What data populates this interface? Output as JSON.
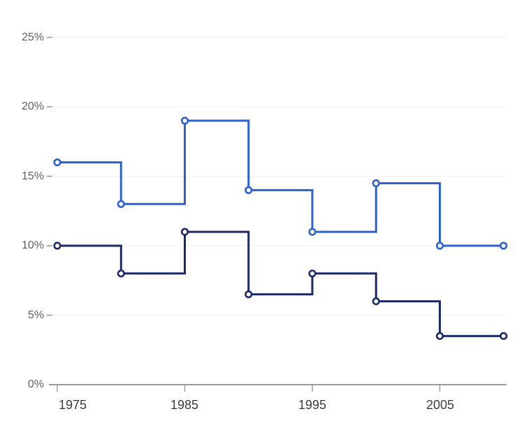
{
  "chart_data": {
    "type": "line",
    "subtype": "step-after-with-markers",
    "title": "",
    "xlabel": "",
    "ylabel": "",
    "x": [
      1975,
      1980,
      1985,
      1990,
      1995,
      2000,
      2005,
      2010
    ],
    "series": [
      {
        "name": "upper-light-blue-series",
        "color": "#2A62D2",
        "values": [
          16,
          13,
          19,
          14,
          11,
          14.5,
          10,
          10
        ]
      },
      {
        "name": "lower-dark-navy-series",
        "color": "#1B2A67",
        "values": [
          10,
          8,
          11,
          6.5,
          8,
          6,
          3.5,
          3.5
        ]
      }
    ],
    "xtick_labels": [
      "1975",
      "1985",
      "1995",
      "2005"
    ],
    "xtick_years": [
      1975,
      1985,
      1995,
      2005
    ],
    "ytick_labels": [
      "25%",
      "20%",
      "15%",
      "10%",
      "5%",
      "0%"
    ],
    "ytick_values": [
      25,
      20,
      15,
      10,
      5,
      0
    ],
    "ylim": [
      0,
      25
    ],
    "xlim": [
      1975,
      2010
    ],
    "grid": "horizontal",
    "legend_position": "none",
    "colors": {
      "background": "#FFFFFF",
      "grid_line": "#F2F2F2",
      "axis_line": "#9B9B9B",
      "tick_mark": "#9B9B9B",
      "y_label_text": "#5E5E5E",
      "x_label_text": "#3C3C3C",
      "marker_fill": "#FFFFFF"
    }
  }
}
